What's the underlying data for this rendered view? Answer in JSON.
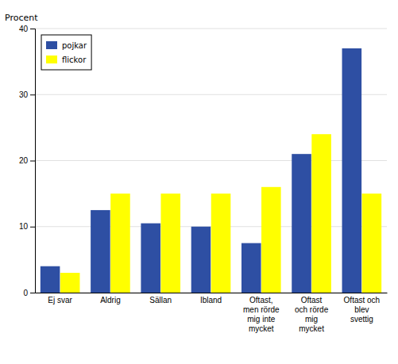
{
  "chart_data": {
    "type": "bar",
    "ylabel": "Procent",
    "categories": [
      "Ej svar",
      "Aldrig",
      "Sällan",
      "Ibland",
      "Oftast,\nmen rörde\nmig inte\nmycket",
      "Oftast\noch rörde\nmig\nmycket",
      "Oftast och\nblev\nsvettig"
    ],
    "series": [
      {
        "name": "pojkar",
        "color": "#2e4fa3",
        "values": [
          4.0,
          12.5,
          10.5,
          10.0,
          7.5,
          21.0,
          37.0
        ]
      },
      {
        "name": "flickor",
        "color": "#ffff00",
        "values": [
          3.0,
          15.0,
          15.0,
          15.0,
          16.0,
          24.0,
          15.0
        ]
      }
    ],
    "ylim": [
      0,
      40
    ],
    "yticks": [
      0,
      10,
      20,
      30,
      40
    ],
    "grid": true,
    "legend": "upper left"
  }
}
